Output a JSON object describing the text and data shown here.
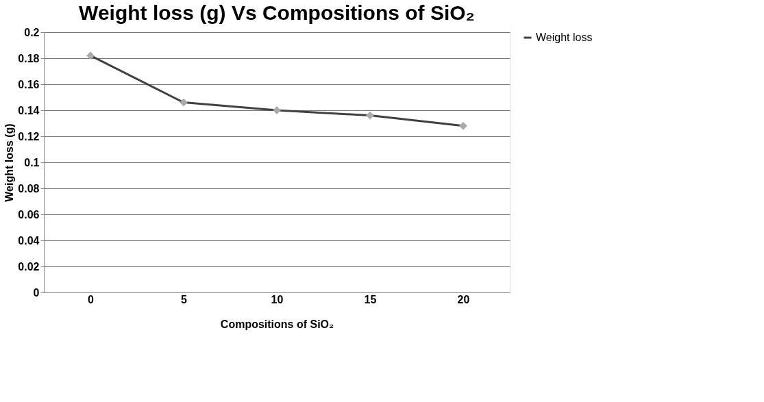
{
  "chart_data": {
    "type": "line",
    "title": "Weight loss (g) Vs Compositions of SiO₂",
    "xlabel": "Compositions of SiO₂",
    "ylabel": "Weight loss (g)",
    "categories": [
      "0",
      "5",
      "10",
      "15",
      "20"
    ],
    "series": [
      {
        "name": "Weight loss",
        "color": "#404040",
        "values": [
          0.182,
          0.146,
          0.14,
          0.136,
          0.128
        ]
      }
    ],
    "ylim": [
      0,
      0.2
    ],
    "yticks": [
      0,
      0.02,
      0.04,
      0.06,
      0.08,
      0.1,
      0.12,
      0.14,
      0.16,
      0.18,
      0.2
    ],
    "grid": "y",
    "legend": "right",
    "marker": "diamond",
    "line_style": "solid"
  }
}
